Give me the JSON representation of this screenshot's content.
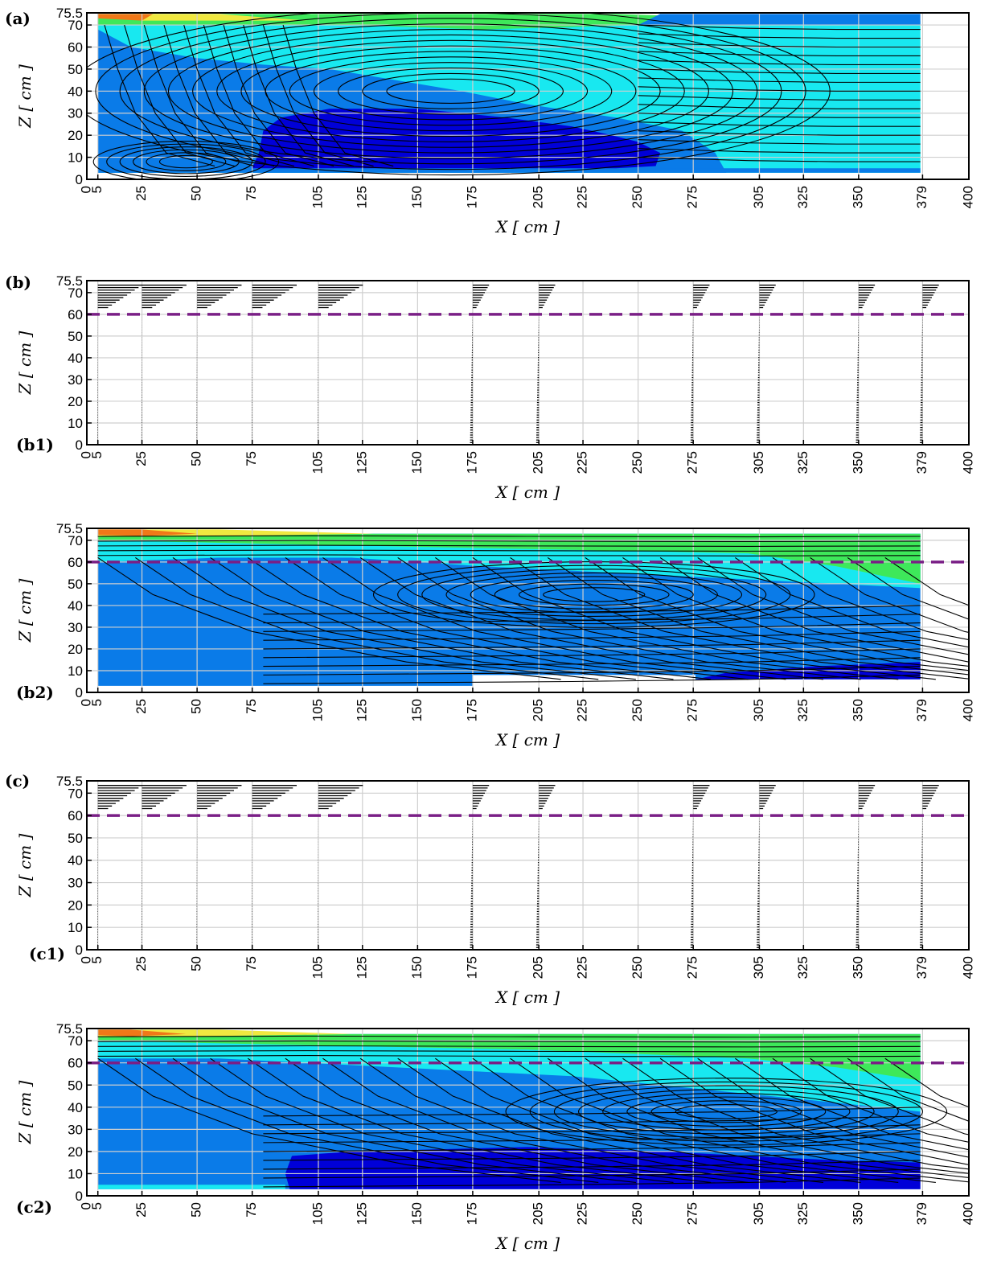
{
  "panel_labels": {
    "a": "(a)",
    "b": "(b)",
    "b1": "(b1)",
    "b2": "(b2)",
    "c": "(c)",
    "c1": "(c1)",
    "c2": "(c2)"
  },
  "colors": {
    "deep_blue": "#0000d8",
    "mid_blue": "#0a7be8",
    "cyan": "#18e8f0",
    "green": "#3ee85a",
    "yellow": "#f0e840",
    "orange": "#f07818",
    "reference_line": "#7a1f86",
    "grid": "#cfcfcf"
  },
  "chart_data": [
    {
      "id": "a",
      "type": "contour-streamline",
      "xlabel": "X [ cm ]",
      "ylabel": "Z [ cm ]",
      "xlim": [
        0,
        400
      ],
      "ylim": [
        0,
        75.5
      ],
      "xticks": [
        0,
        5,
        25,
        50,
        75,
        105,
        125,
        150,
        175,
        205,
        225,
        250,
        275,
        305,
        325,
        350,
        379,
        400
      ],
      "yticks": [
        0,
        10,
        20,
        30,
        40,
        50,
        60,
        70,
        75.5
      ],
      "grid": true
    },
    {
      "id": "b1",
      "type": "vector-profiles",
      "xlabel": "X [ cm ]",
      "ylabel": "Z [ cm ]",
      "xlim": [
        0,
        400
      ],
      "ylim": [
        0,
        75.5
      ],
      "xticks": [
        0,
        5,
        25,
        50,
        75,
        105,
        125,
        150,
        175,
        205,
        225,
        250,
        275,
        305,
        325,
        350,
        379,
        400
      ],
      "yticks": [
        0,
        10,
        20,
        30,
        40,
        50,
        60,
        70,
        75.5
      ],
      "profile_x": [
        5,
        25,
        50,
        75,
        105,
        175,
        205,
        275,
        305,
        350,
        379
      ],
      "reference_line_z": 60,
      "grid": true
    },
    {
      "id": "b2",
      "type": "contour-streamline",
      "xlabel": "X [ cm ]",
      "ylabel": "Z [ cm ]",
      "xlim": [
        0,
        400
      ],
      "ylim": [
        0,
        75.5
      ],
      "xticks": [
        0,
        5,
        25,
        50,
        75,
        105,
        125,
        150,
        175,
        205,
        225,
        250,
        275,
        305,
        325,
        350,
        379,
        400
      ],
      "yticks": [
        0,
        10,
        20,
        30,
        40,
        50,
        60,
        70,
        75.5
      ],
      "reference_line_z": 60,
      "grid": true
    },
    {
      "id": "c1",
      "type": "vector-profiles",
      "xlabel": "X [ cm ]",
      "ylabel": "Z [ cm ]",
      "xlim": [
        0,
        400
      ],
      "ylim": [
        0,
        75.5
      ],
      "xticks": [
        0,
        5,
        25,
        50,
        75,
        105,
        125,
        150,
        175,
        205,
        225,
        250,
        275,
        305,
        325,
        350,
        379,
        400
      ],
      "yticks": [
        0,
        10,
        20,
        30,
        40,
        50,
        60,
        70,
        75.5
      ],
      "profile_x": [
        5,
        25,
        50,
        75,
        105,
        175,
        205,
        275,
        305,
        350,
        379
      ],
      "reference_line_z": 60,
      "grid": true
    },
    {
      "id": "c2",
      "type": "contour-streamline",
      "xlabel": "X [ cm ]",
      "ylabel": "Z [ cm ]",
      "xlim": [
        0,
        400
      ],
      "ylim": [
        0,
        75.5
      ],
      "xticks": [
        0,
        5,
        25,
        50,
        75,
        105,
        125,
        150,
        175,
        205,
        225,
        250,
        275,
        305,
        325,
        350,
        379,
        400
      ],
      "yticks": [
        0,
        10,
        20,
        30,
        40,
        50,
        60,
        70,
        75.5
      ],
      "reference_line_z": 60,
      "grid": true
    }
  ]
}
